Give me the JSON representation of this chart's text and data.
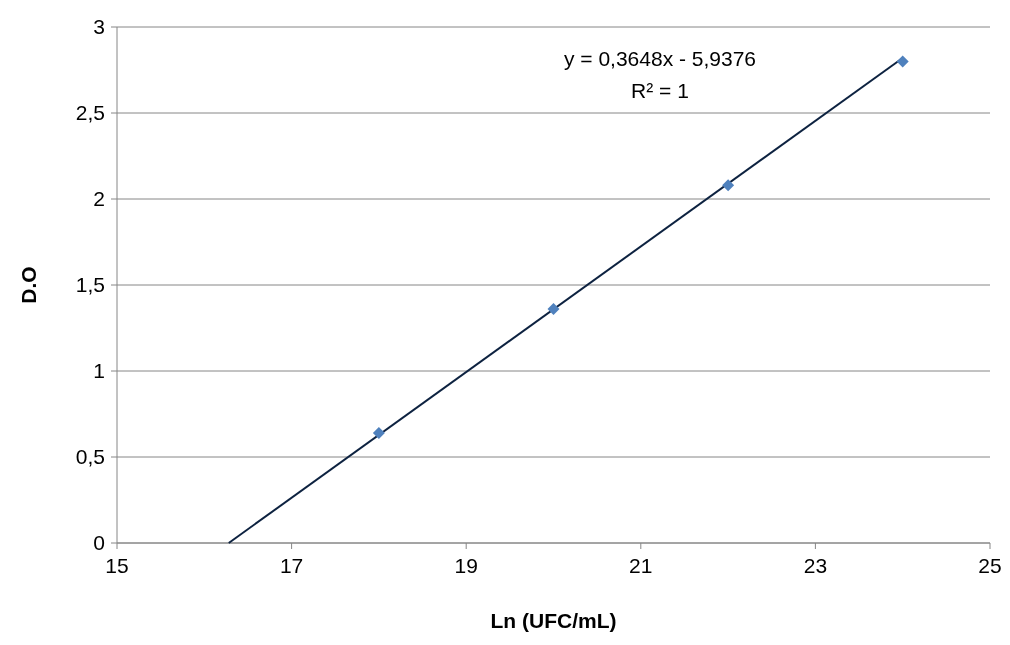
{
  "chart_data": {
    "type": "scatter",
    "xlabel": "Ln (UFC/mL)",
    "ylabel": "D.O",
    "annotations": [
      "y = 0,3648x - 5,9376",
      "R² = 1"
    ],
    "series": [
      {
        "type": "line",
        "color": "#0d2240",
        "x": [
          16.28,
          24
        ],
        "values": [
          0,
          2.82
        ],
        "marker": "none",
        "line_style": "solid"
      },
      {
        "color": "#4f81bd",
        "x": [
          18,
          20,
          22,
          24
        ],
        "values": [
          0.64,
          1.36,
          2.08,
          2.8
        ],
        "marker": "diamond"
      }
    ],
    "xlim": [
      15,
      25
    ],
    "xticks": [
      15,
      17,
      19,
      21,
      23,
      25
    ],
    "ylim": [
      0,
      3
    ],
    "yticks": [
      0,
      {
        "value": 0.5,
        "label": "0,5"
      },
      1,
      {
        "value": 1.5,
        "label": "1,5"
      },
      2,
      {
        "value": 2.5,
        "label": "2,5"
      },
      3
    ],
    "grid": "y"
  }
}
